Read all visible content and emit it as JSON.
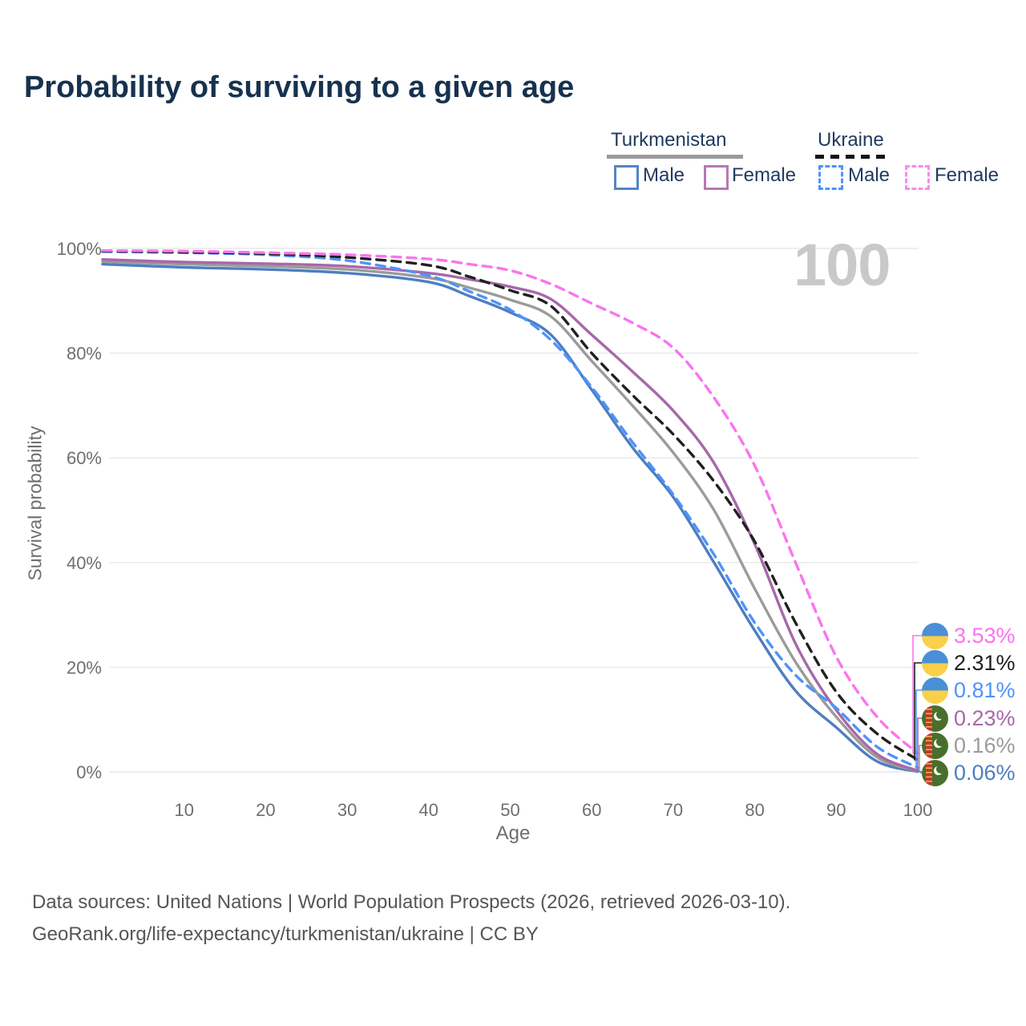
{
  "title": "Probability of surviving to a given age",
  "watermark": "100",
  "legend": {
    "groups": [
      {
        "country": "Turkmenistan",
        "line_style": "solid",
        "line_color": "#9a9a9a",
        "items": [
          {
            "label": "Male",
            "color": "#5585c7",
            "line_style": "solid"
          },
          {
            "label": "Female",
            "color": "#b678b6",
            "line_style": "solid"
          }
        ]
      },
      {
        "country": "Ukraine",
        "line_style": "dashed",
        "line_color": "#141414",
        "items": [
          {
            "label": "Male",
            "color": "#4f93fa",
            "line_style": "dashed"
          },
          {
            "label": "Female",
            "color": "#fb8aef",
            "line_style": "dashed"
          }
        ]
      }
    ]
  },
  "chart_data": {
    "type": "line",
    "title": "Probability of surviving to a given age",
    "xlabel": "Age",
    "ylabel": "Survival probability",
    "x_range": [
      0,
      100
    ],
    "y_range": [
      0,
      100
    ],
    "grid": "horizontal",
    "x_ticks": [
      10,
      20,
      30,
      40,
      50,
      60,
      70,
      80,
      90,
      100
    ],
    "y_ticks": [
      {
        "value": 100,
        "label": "100%"
      },
      {
        "value": 80,
        "label": "80%"
      },
      {
        "value": 60,
        "label": "60%"
      },
      {
        "value": 40,
        "label": "40%"
      },
      {
        "value": 20,
        "label": "20%"
      },
      {
        "value": 0,
        "label": "0%"
      }
    ],
    "x_ages": [
      0,
      10,
      20,
      30,
      40,
      45,
      50,
      55,
      60,
      65,
      70,
      75,
      80,
      85,
      90,
      95,
      100
    ],
    "series": [
      {
        "name": "Ukraine Female",
        "country": "Ukraine",
        "sex": "Female",
        "color": "#fa74ef",
        "line_style": "dashed",
        "flag": "ukraine",
        "end_label": "3.53%",
        "end_value": 3.53,
        "values": [
          99.6,
          99.5,
          99.2,
          98.8,
          98.0,
          97.0,
          95.8,
          93.2,
          89.5,
          85.8,
          81.0,
          71.5,
          58.5,
          40.0,
          22.0,
          10.5,
          3.53
        ]
      },
      {
        "name": "Ukraine Total",
        "country": "Ukraine",
        "sex": "Both",
        "color": "#202020",
        "line_style": "dashed",
        "flag": "ukraine",
        "end_label": "2.31%",
        "end_value": 2.31,
        "values": [
          99.5,
          99.3,
          99.0,
          98.3,
          96.8,
          94.6,
          92.0,
          89.0,
          80.0,
          72.0,
          64.5,
          55.5,
          44.0,
          28.5,
          15.3,
          7.3,
          2.31
        ]
      },
      {
        "name": "Ukraine Male",
        "country": "Ukraine",
        "sex": "Male",
        "color": "#4f93fa",
        "line_style": "dashed",
        "flag": "ukraine",
        "end_label": "0.81%",
        "end_value": 0.81,
        "values": [
          99.4,
          99.2,
          98.8,
          97.7,
          94.8,
          91.8,
          88.3,
          82.5,
          73.5,
          63.0,
          53.0,
          41.5,
          28.5,
          18.5,
          12.2,
          4.8,
          0.81
        ]
      },
      {
        "name": "Turkmenistan Female",
        "country": "Turkmenistan",
        "sex": "Female",
        "color": "#a768a9",
        "line_style": "solid",
        "flag": "turkmenistan",
        "end_label": "0.23%",
        "end_value": 0.23,
        "values": [
          97.9,
          97.4,
          97.1,
          96.6,
          95.3,
          94.1,
          92.7,
          90.3,
          83.5,
          76.5,
          69.0,
          59.0,
          43.5,
          24.5,
          11.8,
          3.4,
          0.23
        ]
      },
      {
        "name": "Turkmenistan Total",
        "country": "Turkmenistan",
        "sex": "Both",
        "color": "#9b9b9b",
        "line_style": "solid",
        "flag": "turkmenistan",
        "end_label": "0.16%",
        "end_value": 0.16,
        "values": [
          97.5,
          97.0,
          96.6,
          96.0,
          94.4,
          92.5,
          90.2,
          87.0,
          78.5,
          70.0,
          61.0,
          50.0,
          35.0,
          21.0,
          10.5,
          2.8,
          0.16
        ]
      },
      {
        "name": "Turkmenistan Male",
        "country": "Turkmenistan",
        "sex": "Male",
        "color": "#4d7ec0",
        "line_style": "solid",
        "flag": "turkmenistan",
        "end_label": "0.06%",
        "end_value": 0.06,
        "values": [
          97.0,
          96.4,
          96.0,
          95.3,
          93.6,
          90.9,
          87.8,
          83.5,
          73.0,
          62.0,
          52.5,
          40.0,
          27.0,
          15.5,
          8.5,
          2.0,
          0.06
        ]
      }
    ]
  },
  "footer": {
    "line1": "Data sources: United Nations | World Population Prospects (2026, retrieved 2026-03-10).",
    "line2": "GeoRank.org/life-expectancy/turkmenistan/ukraine | CC BY"
  }
}
